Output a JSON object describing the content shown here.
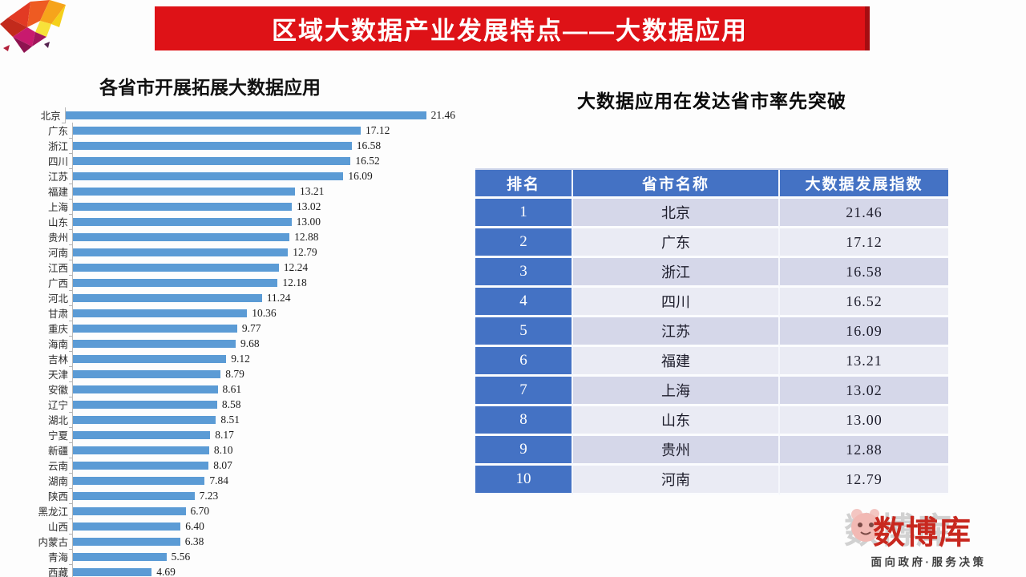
{
  "banner": {
    "title": "区域大数据产业发展特点——大数据应用",
    "bg": "#DE1217"
  },
  "chart_data": {
    "type": "bar",
    "orientation": "horizontal",
    "title": "各省市开展拓展大数据应用",
    "categories": [
      "北京",
      "广东",
      "浙江",
      "四川",
      "江苏",
      "福建",
      "上海",
      "山东",
      "贵州",
      "河南",
      "江西",
      "广西",
      "河北",
      "甘肃",
      "重庆",
      "海南",
      "吉林",
      "天津",
      "安徽",
      "辽宁",
      "湖北",
      "宁夏",
      "新疆",
      "云南",
      "湖南",
      "陕西",
      "黑龙江",
      "山西",
      "内蒙古",
      "青海",
      "西藏"
    ],
    "values": [
      21.46,
      17.12,
      16.58,
      16.52,
      16.09,
      13.21,
      13.02,
      13.0,
      12.88,
      12.79,
      12.24,
      12.18,
      11.24,
      10.36,
      9.77,
      9.68,
      9.12,
      8.79,
      8.61,
      8.58,
      8.51,
      8.17,
      8.1,
      8.07,
      7.84,
      7.23,
      6.7,
      6.4,
      6.38,
      5.56,
      4.69
    ],
    "labels": [
      "21.46",
      "17.12",
      "16.58",
      "16.52",
      "16.09",
      "13.21",
      "13.02",
      "13.00",
      "12.88",
      "12.79",
      "12.24",
      "12.18",
      "11.24",
      "10.36",
      "9.77",
      "9.68",
      "9.12",
      "8.79",
      "8.61",
      "8.58",
      "8.51",
      "8.17",
      "8.10",
      "8.07",
      "7.84",
      "7.23",
      "6.70",
      "6.40",
      "6.38",
      "5.56",
      "4.69"
    ],
    "xlim": [
      0,
      22
    ],
    "bar_color": "#5B9BD5",
    "grid": false,
    "value_labels": true,
    "legend": "none"
  },
  "table_section": {
    "heading": "大数据应用在发达省市率先突破",
    "columns": [
      "排名",
      "省市名称",
      "大数据发展指数"
    ],
    "rows": [
      {
        "rank": "1",
        "name": "北京",
        "value": "21.46"
      },
      {
        "rank": "2",
        "name": "广东",
        "value": "17.12"
      },
      {
        "rank": "3",
        "name": "浙江",
        "value": "16.58"
      },
      {
        "rank": "4",
        "name": "四川",
        "value": "16.52"
      },
      {
        "rank": "5",
        "name": "江苏",
        "value": "16.09"
      },
      {
        "rank": "6",
        "name": "福建",
        "value": "13.21"
      },
      {
        "rank": "7",
        "name": "上海",
        "value": "13.02"
      },
      {
        "rank": "8",
        "name": "山东",
        "value": "13.00"
      },
      {
        "rank": "9",
        "name": "贵州",
        "value": "12.88"
      },
      {
        "rank": "10",
        "name": "河南",
        "value": "12.79"
      }
    ]
  },
  "footer_logo": {
    "brand": "数博库",
    "slogan": "面向政府·服务决策"
  }
}
